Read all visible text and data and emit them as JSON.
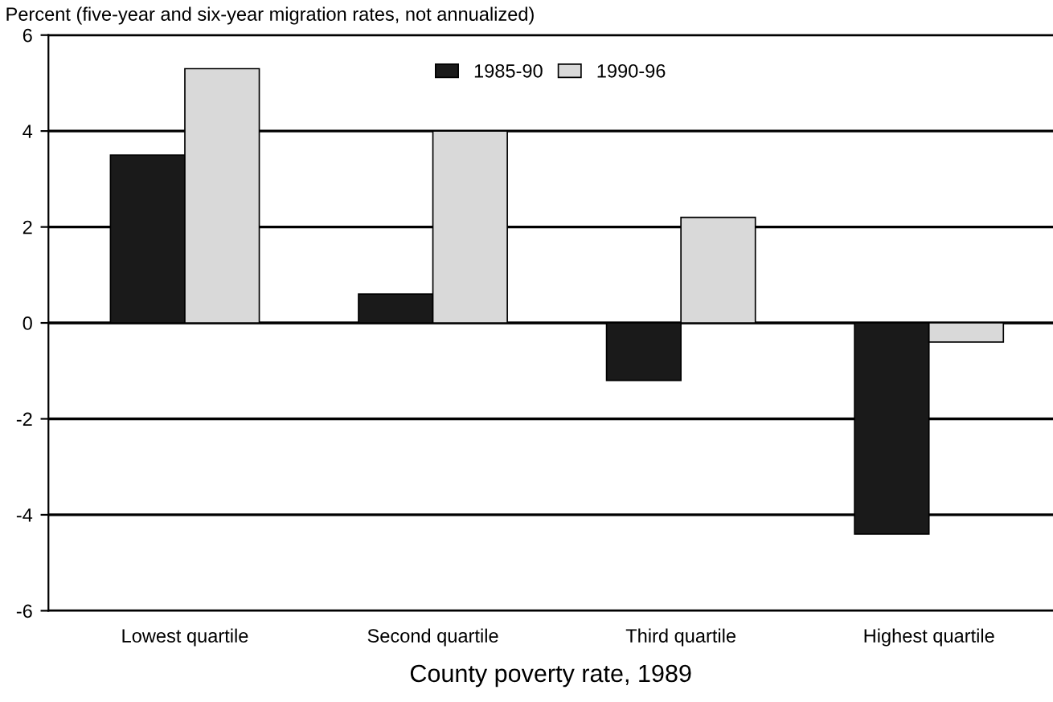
{
  "chart_data": {
    "type": "bar",
    "ylabel": "Percent (five-year and six-year migration rates, not annualized)",
    "xlabel": "County poverty rate, 1989",
    "categories": [
      "Lowest quartile",
      "Second quartile",
      "Third quartile",
      "Highest quartile"
    ],
    "series": [
      {
        "name": "1985-90",
        "color": "#1a1a1a",
        "values": [
          3.5,
          0.6,
          -1.2,
          -4.4
        ]
      },
      {
        "name": "1990-96",
        "color": "#d9d9d9",
        "values": [
          5.3,
          4.0,
          2.2,
          -0.4
        ]
      }
    ],
    "ylim": [
      -6,
      6
    ],
    "yticks": [
      -6,
      -4,
      -2,
      0,
      2,
      4,
      6
    ],
    "grid": "y",
    "legend": "top"
  }
}
